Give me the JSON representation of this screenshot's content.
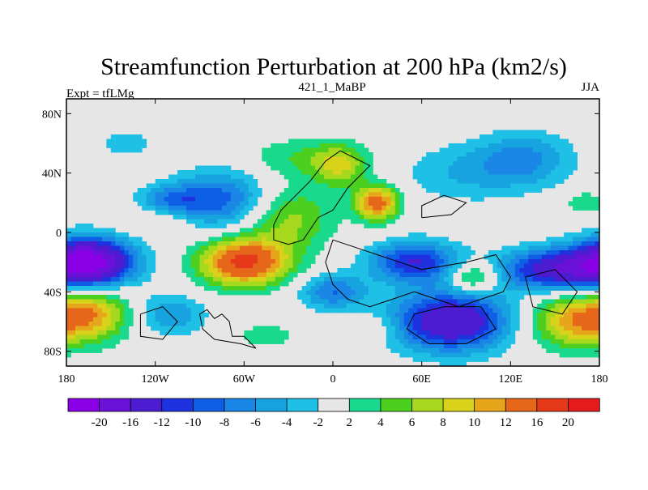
{
  "chart_data": {
    "type": "heatmap",
    "title": "Streamfunction Perturbation at 200 hPa (km2/s)",
    "subtitle_left": "Expt = tfLMg",
    "subtitle_center": "421_1_MaBP",
    "subtitle_right": "JJA",
    "xlim": [
      -180,
      180
    ],
    "ylim": [
      -90,
      90
    ],
    "x_ticks": [
      {
        "value": -180,
        "label": "180"
      },
      {
        "value": -120,
        "label": "120W"
      },
      {
        "value": -60,
        "label": "60W"
      },
      {
        "value": 0,
        "label": "0"
      },
      {
        "value": 60,
        "label": "60E"
      },
      {
        "value": 120,
        "label": "120E"
      },
      {
        "value": 180,
        "label": "180"
      }
    ],
    "y_ticks": [
      {
        "value": 80,
        "label": "80N"
      },
      {
        "value": 40,
        "label": "40N"
      },
      {
        "value": 0,
        "label": "0"
      },
      {
        "value": -40,
        "label": "40S"
      },
      {
        "value": -80,
        "label": "80S"
      }
    ],
    "colorbar": {
      "boundaries": [
        "-20",
        "-16",
        "-12",
        "-10",
        "-8",
        "-6",
        "-4",
        "-2",
        "2",
        "4",
        "6",
        "8",
        "10",
        "12",
        "16",
        "20"
      ],
      "colors": [
        "#8a00e6",
        "#6a10d8",
        "#4d1bd0",
        "#1e32e0",
        "#0f5ee6",
        "#1a86e6",
        "#17a3e0",
        "#1ec0e6",
        "#e6e6e6",
        "#19d98c",
        "#4ccf1e",
        "#a6d81e",
        "#d9d21a",
        "#e6a51a",
        "#e6661a",
        "#e6391a",
        "#e61a1a"
      ]
    },
    "field_centers": [
      {
        "lon": -165,
        "lat": -20,
        "value": -22,
        "rlon": 30,
        "rlat": 16
      },
      {
        "lon": -165,
        "lat": -55,
        "value": 11,
        "rlon": 28,
        "rlat": 18
      },
      {
        "lon": -140,
        "lat": 60,
        "value": -3,
        "rlon": 22,
        "rlat": 10
      },
      {
        "lon": -110,
        "lat": 22,
        "value": -6,
        "rlon": 22,
        "rlat": 10
      },
      {
        "lon": -75,
        "lat": 22,
        "value": -9,
        "rlon": 34,
        "rlat": 20
      },
      {
        "lon": -120,
        "lat": 8,
        "value": 3,
        "rlon": 24,
        "rlat": 8
      },
      {
        "lon": -60,
        "lat": -20,
        "value": 17,
        "rlon": 30,
        "rlat": 16
      },
      {
        "lon": -30,
        "lat": 10,
        "value": 7,
        "rlon": 30,
        "rlat": 22
      },
      {
        "lon": -110,
        "lat": -55,
        "value": -6,
        "rlon": 24,
        "rlat": 14
      },
      {
        "lon": -45,
        "lat": -70,
        "value": 3,
        "rlon": 24,
        "rlat": 10
      },
      {
        "lon": -20,
        "lat": 50,
        "value": 4,
        "rlon": 40,
        "rlat": 14
      },
      {
        "lon": 30,
        "lat": 20,
        "value": 14,
        "rlon": 15,
        "rlat": 12
      },
      {
        "lon": 5,
        "lat": 45,
        "value": 7,
        "rlon": 18,
        "rlat": 14
      },
      {
        "lon": 0,
        "lat": -40,
        "value": -8,
        "rlon": 22,
        "rlat": 12
      },
      {
        "lon": 25,
        "lat": -65,
        "value": 3,
        "rlon": 22,
        "rlat": 10
      },
      {
        "lon": 55,
        "lat": -20,
        "value": -12,
        "rlon": 30,
        "rlat": 14
      },
      {
        "lon": 80,
        "lat": -60,
        "value": -16,
        "rlon": 40,
        "rlat": 20
      },
      {
        "lon": 95,
        "lat": -30,
        "value": 8,
        "rlon": 16,
        "rlat": 10
      },
      {
        "lon": 90,
        "lat": 40,
        "value": -4,
        "rlon": 45,
        "rlat": 20
      },
      {
        "lon": 130,
        "lat": 50,
        "value": -6,
        "rlon": 32,
        "rlat": 18
      },
      {
        "lon": 150,
        "lat": -25,
        "value": -14,
        "rlon": 38,
        "rlat": 14
      },
      {
        "lon": 160,
        "lat": -60,
        "value": 10,
        "rlon": 30,
        "rlat": 18
      },
      {
        "lon": 170,
        "lat": 20,
        "value": 4,
        "rlon": 14,
        "rlat": 8
      }
    ],
    "continent_outlines": [
      [
        [
          -52,
          -78
        ],
        [
          -60,
          -70
        ],
        [
          -68,
          -70
        ],
        [
          -70,
          -60
        ],
        [
          -75,
          -55
        ],
        [
          -80,
          -58
        ],
        [
          -85,
          -52
        ],
        [
          -90,
          -55
        ],
        [
          -88,
          -65
        ],
        [
          -80,
          -72
        ],
        [
          -62,
          -75
        ],
        [
          -52,
          -78
        ]
      ],
      [
        [
          -40,
          -5
        ],
        [
          -30,
          -8
        ],
        [
          -20,
          -5
        ],
        [
          -10,
          10
        ],
        [
          0,
          15
        ],
        [
          10,
          30
        ],
        [
          25,
          45
        ],
        [
          15,
          50
        ],
        [
          5,
          55
        ],
        [
          -5,
          48
        ],
        [
          -15,
          35
        ],
        [
          -25,
          25
        ],
        [
          -35,
          15
        ],
        [
          -40,
          5
        ],
        [
          -40,
          -5
        ]
      ],
      [
        [
          0,
          -5
        ],
        [
          15,
          -10
        ],
        [
          30,
          -15
        ],
        [
          45,
          -20
        ],
        [
          60,
          -25
        ],
        [
          90,
          -20
        ],
        [
          110,
          -15
        ],
        [
          120,
          -30
        ],
        [
          115,
          -40
        ],
        [
          100,
          -45
        ],
        [
          85,
          -50
        ],
        [
          70,
          -45
        ],
        [
          55,
          -40
        ],
        [
          40,
          -45
        ],
        [
          25,
          -50
        ],
        [
          10,
          -45
        ],
        [
          0,
          -35
        ],
        [
          -5,
          -20
        ],
        [
          0,
          -5
        ]
      ],
      [
        [
          55,
          -55
        ],
        [
          75,
          -50
        ],
        [
          100,
          -50
        ],
        [
          110,
          -65
        ],
        [
          90,
          -75
        ],
        [
          65,
          -75
        ],
        [
          50,
          -65
        ],
        [
          55,
          -55
        ]
      ],
      [
        [
          -130,
          -55
        ],
        [
          -115,
          -50
        ],
        [
          -105,
          -60
        ],
        [
          -115,
          -72
        ],
        [
          -130,
          -70
        ],
        [
          -130,
          -55
        ]
      ],
      [
        [
          60,
          10
        ],
        [
          80,
          12
        ],
        [
          90,
          20
        ],
        [
          75,
          25
        ],
        [
          60,
          18
        ],
        [
          60,
          10
        ]
      ],
      [
        [
          130,
          -30
        ],
        [
          150,
          -25
        ],
        [
          165,
          -40
        ],
        [
          155,
          -55
        ],
        [
          135,
          -50
        ],
        [
          130,
          -30
        ]
      ]
    ],
    "colorbar_label": "km2/s"
  }
}
